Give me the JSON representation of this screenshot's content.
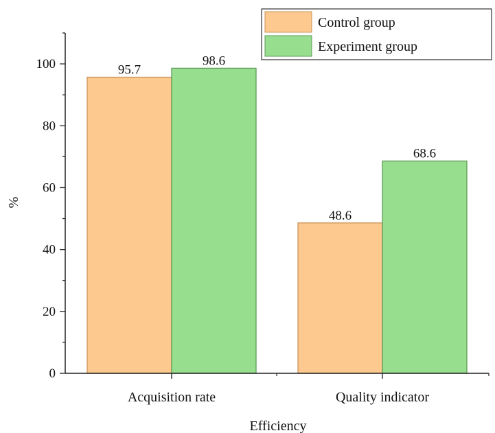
{
  "chart_data": {
    "type": "bar",
    "categories": [
      "Acquisition rate",
      "Quality indicator"
    ],
    "series": [
      {
        "name": "Control group",
        "values": [
          95.7,
          48.6
        ],
        "color": "#fdc98f",
        "edge": "#c9935a"
      },
      {
        "name": "Experiment group",
        "values": [
          98.6,
          68.6
        ],
        "color": "#97df8f",
        "edge": "#5e9a57"
      }
    ],
    "data_labels": [
      "95.7",
      "98.6",
      "48.6",
      "68.6"
    ],
    "xlabel": "Efficiency",
    "ylabel": "%",
    "ylim": [
      0,
      110
    ],
    "yticks": [
      "0",
      "20",
      "40",
      "60",
      "80",
      "100"
    ],
    "grid": false,
    "legend_position": "top-right"
  }
}
